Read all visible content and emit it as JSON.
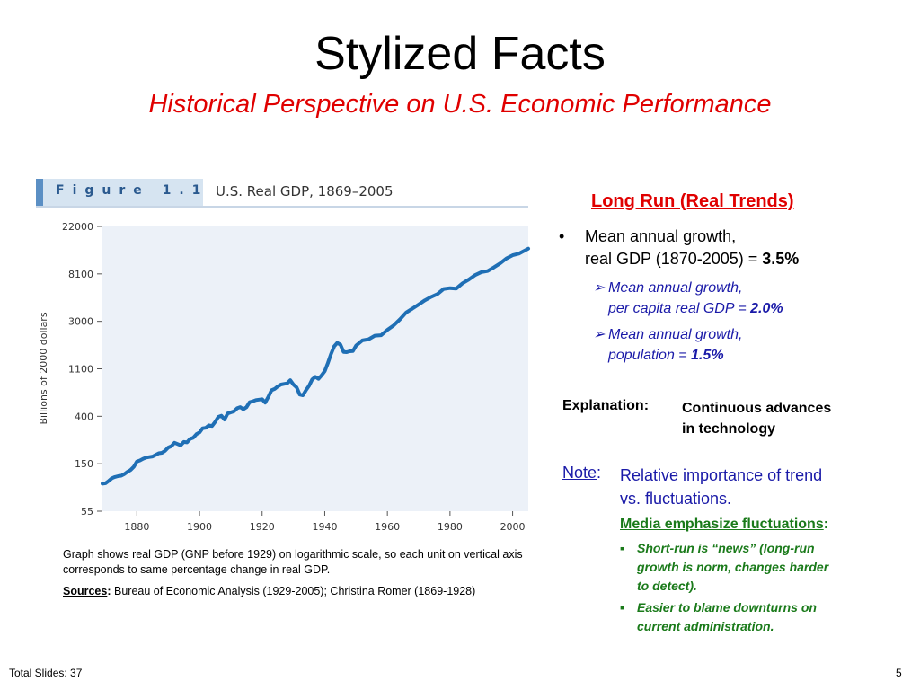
{
  "slide": {
    "title": "Stylized Facts",
    "subtitle": "Historical Perspective on U.S. Economic Performance",
    "footer_left": "Total Slides: 37",
    "page_number": "5"
  },
  "figure": {
    "label": "Figure 1.1",
    "title": "U.S. Real GDP, 1869–2005",
    "ylabel": "Billions of 2000 dollars",
    "caption": "Graph shows real GDP (GNP before 1929) on logarithmic scale, so each unit on vertical axis corresponds to same percentage change in real GDP.",
    "sources_label": "Sources",
    "sources_text": "Bureau of Economic Analysis (1929-2005); Christina Romer (1869-1928)"
  },
  "chart_data": {
    "type": "line",
    "title": "U.S. Real GDP, 1869–2005",
    "xlabel": "",
    "ylabel": "Billions of 2000 dollars",
    "y_scale": "log",
    "xlim": [
      1869,
      2005
    ],
    "ylim": [
      55,
      22000
    ],
    "x_ticks": [
      "1880",
      "1900",
      "1920",
      "1940",
      "1960",
      "1980",
      "2000"
    ],
    "y_ticks": [
      "22000",
      "8100",
      "3000",
      "1100",
      "400",
      "150",
      "55"
    ],
    "grid": false,
    "color": "#1f6fb5",
    "x": [
      1869,
      1870,
      1871,
      1872,
      1873,
      1874,
      1875,
      1876,
      1877,
      1878,
      1879,
      1880,
      1881,
      1882,
      1883,
      1884,
      1885,
      1886,
      1887,
      1888,
      1889,
      1890,
      1891,
      1892,
      1893,
      1894,
      1895,
      1896,
      1897,
      1898,
      1899,
      1900,
      1901,
      1902,
      1903,
      1904,
      1905,
      1906,
      1907,
      1908,
      1909,
      1910,
      1911,
      1912,
      1913,
      1914,
      1915,
      1916,
      1917,
      1918,
      1919,
      1920,
      1921,
      1922,
      1923,
      1924,
      1925,
      1926,
      1927,
      1928,
      1929,
      1930,
      1931,
      1932,
      1933,
      1934,
      1935,
      1936,
      1937,
      1938,
      1939,
      1940,
      1941,
      1942,
      1943,
      1944,
      1945,
      1946,
      1947,
      1948,
      1949,
      1950,
      1952,
      1954,
      1956,
      1958,
      1960,
      1962,
      1964,
      1966,
      1968,
      1970,
      1972,
      1974,
      1976,
      1978,
      1980,
      1982,
      1984,
      1986,
      1988,
      1990,
      1992,
      1994,
      1996,
      1998,
      2000,
      2002,
      2004,
      2005
    ],
    "values": [
      98,
      99,
      104,
      110,
      113,
      115,
      116,
      120,
      126,
      131,
      140,
      156,
      160,
      166,
      170,
      172,
      174,
      180,
      186,
      188,
      196,
      210,
      216,
      232,
      226,
      220,
      236,
      234,
      252,
      258,
      278,
      288,
      315,
      318,
      335,
      330,
      360,
      400,
      410,
      378,
      430,
      440,
      450,
      480,
      492,
      470,
      490,
      545,
      555,
      570,
      575,
      580,
      540,
      610,
      700,
      720,
      760,
      790,
      800,
      810,
      865,
      790,
      745,
      640,
      630,
      700,
      770,
      880,
      930,
      890,
      960,
      1050,
      1240,
      1500,
      1760,
      1900,
      1830,
      1570,
      1560,
      1590,
      1600,
      1790,
      2000,
      2050,
      2210,
      2230,
      2500,
      2740,
      3110,
      3600,
      3900,
      4260,
      4650,
      5000,
      5300,
      5900,
      6000,
      5950,
      6650,
      7200,
      7900,
      8400,
      8600,
      9300,
      10100,
      11200,
      12000,
      12400,
      13300,
      13800
    ]
  },
  "right": {
    "heading": "Long Run (Real Trends)",
    "bullet1_line1": "Mean annual growth,",
    "bullet1_line2": "real GDP (1870-2005) = ",
    "bullet1_value": "3.5%",
    "sub1_line1": "Mean annual growth,",
    "sub1_line2": "per capita real GDP = ",
    "sub1_value": "2.0%",
    "sub2_line1": "Mean annual growth,",
    "sub2_line2": "population = ",
    "sub2_value": "1.5%",
    "explanation_label": "Explanation",
    "explanation_line1": "Continuous advances",
    "explanation_line2": "in technology",
    "note_label": "Note",
    "note_line1": "Relative importance of trend",
    "note_line2": "vs. fluctuations.",
    "media_label": "Media emphasize fluctuations",
    "media_b1_line1": "Short-run is “news” (long-run",
    "media_b1_line2": "growth is norm, changes harder",
    "media_b1_line3": "to detect).",
    "media_b2_line1": "Easier to blame downturns on",
    "media_b2_line2": "current administration."
  }
}
